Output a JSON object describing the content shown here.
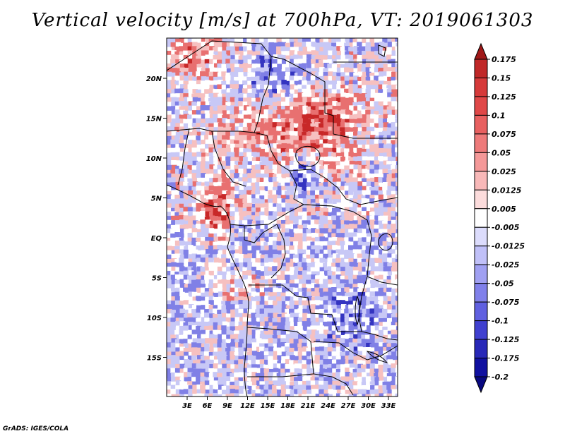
{
  "title": "Vertical velocity [m/s] at 700hPa, VT: 2019061303",
  "credit": "GrADS: IGES/COLA",
  "map": {
    "lat_labels": [
      "20N",
      "15N",
      "10N",
      "5N",
      "EQ",
      "5S",
      "10S",
      "15S"
    ],
    "lon_labels": [
      "3E",
      "6E",
      "9E",
      "12E",
      "15E",
      "18E",
      "21E",
      "24E",
      "27E",
      "30E",
      "33E"
    ]
  },
  "colorbar": {
    "labels": [
      "0.175",
      "0.15",
      "0.125",
      "0.1",
      "0.075",
      "0.05",
      "0.025",
      "0.0125",
      "0.005",
      "-0.005",
      "-0.0125",
      "-0.025",
      "-0.05",
      "-0.075",
      "-0.1",
      "-0.125",
      "-0.175",
      "-0.2"
    ],
    "colors": [
      "#a01818",
      "#c02828",
      "#d63a3a",
      "#e04848",
      "#e86060",
      "#ee7a7a",
      "#f49898",
      "#f8b8b8",
      "#fcdcdc",
      "#ffffff",
      "#dcdcfc",
      "#c0c0f8",
      "#a0a0f2",
      "#8080ea",
      "#6060e0",
      "#4040d0",
      "#2828b8",
      "#1010a0",
      "#080880"
    ]
  },
  "field_colors": {
    "rising_strong": "#c82828",
    "rising": "#e87070",
    "rising_weak": "#f6c0c0",
    "neutral": "#ffffff",
    "sinking_weak": "#c8c8f6",
    "sinking": "#8080e6",
    "sinking_strong": "#3434c0"
  }
}
